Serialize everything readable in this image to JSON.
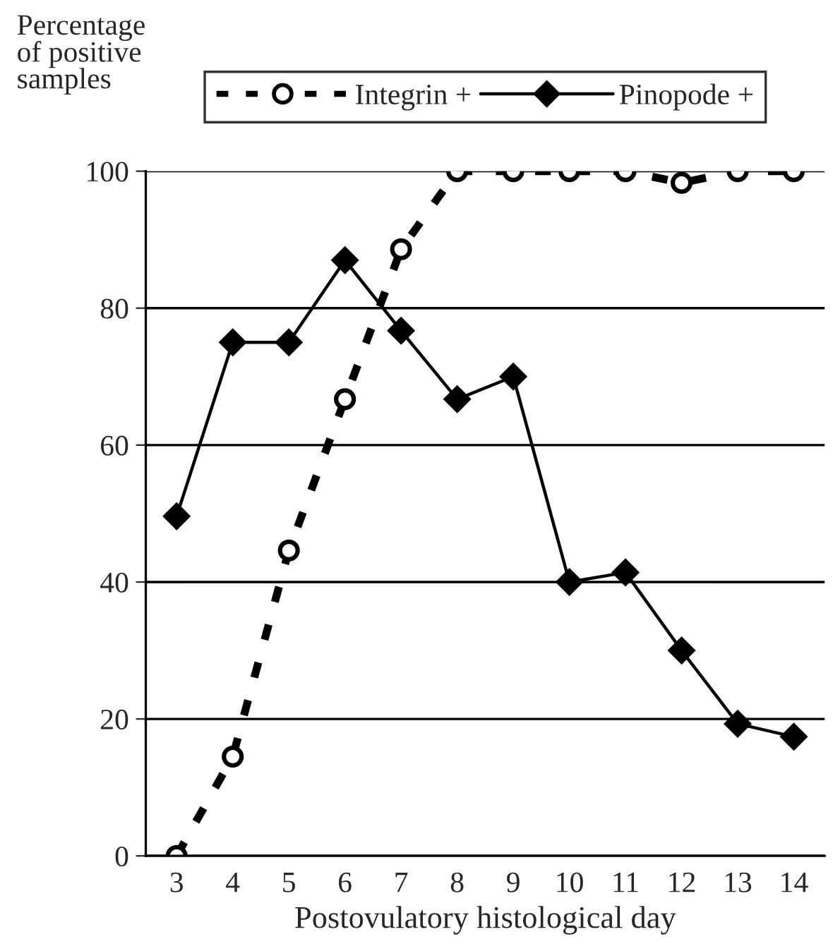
{
  "chart_data": {
    "type": "line",
    "ylabel": "Percentage\nof positive\nsamples",
    "xlabel": "Postovulatory histological day",
    "categories": [
      "3",
      "4",
      "5",
      "6",
      "7",
      "8",
      "9",
      "10",
      "11",
      "12",
      "13",
      "14"
    ],
    "series": [
      {
        "name": "Integrin +",
        "color": "#000000",
        "line_style": "dashed",
        "marker": "circle",
        "values": [
          0,
          14.5,
          44.6,
          66.7,
          88.6,
          100,
          100,
          100,
          100,
          98.3,
          100,
          100
        ]
      },
      {
        "name": "Pinopode +",
        "color": "#000000",
        "line_style": "solid",
        "marker": "diamond",
        "values": [
          49.6,
          75,
          75,
          87,
          76.7,
          66.7,
          70,
          40,
          41.4,
          30,
          19.3,
          17.4
        ]
      }
    ],
    "ylim": [
      0,
      100
    ],
    "yticks": [
      0,
      20,
      40,
      60,
      80,
      100
    ],
    "grid": "y",
    "legend": "top"
  }
}
